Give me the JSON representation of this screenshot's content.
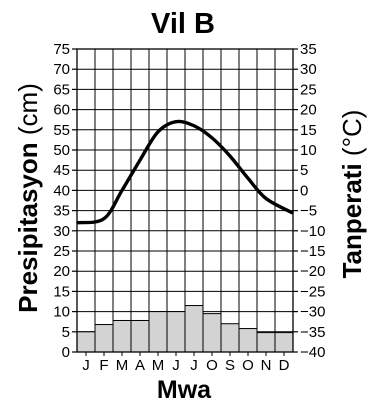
{
  "chart_data": {
    "type": "bar",
    "title": "Vil B",
    "xlabel": "Mwa",
    "ylabel_left": {
      "bold": "Presipitasyon",
      "unit": "(cm)"
    },
    "ylabel_right": {
      "bold": "Tanperati",
      "unit": "(°C)"
    },
    "categories": [
      "J",
      "F",
      "M",
      "A",
      "M",
      "J",
      "J",
      "O",
      "S",
      "O",
      "N",
      "D"
    ],
    "left_axis": {
      "range": [
        0,
        75
      ],
      "ticks": [
        "75",
        "70",
        "65",
        "60",
        "55",
        "50",
        "45",
        "40",
        "35",
        "30",
        "25",
        "20",
        "15",
        "10",
        "5",
        "0"
      ]
    },
    "right_axis": {
      "range": [
        -40,
        35
      ],
      "ticks": [
        "35",
        "30",
        "25",
        "20",
        "15",
        "10",
        "5",
        "0",
        "−5",
        "−10",
        "−15",
        "−20",
        "−25",
        "−30",
        "−35",
        "−40"
      ]
    },
    "series": [
      {
        "type": "bar",
        "axis": "left",
        "color": "#d3d3d3",
        "values": [
          5,
          6.8,
          7.8,
          7.8,
          10,
          10,
          11.5,
          9.5,
          7,
          5.8,
          4.8,
          4.8
        ]
      },
      {
        "type": "line",
        "axis": "right",
        "color": "#000000",
        "values": [
          -8,
          -7,
          0,
          7.5,
          14.5,
          17,
          16,
          13,
          8.5,
          3,
          -2,
          -5.5
        ]
      }
    ],
    "grid": true
  }
}
